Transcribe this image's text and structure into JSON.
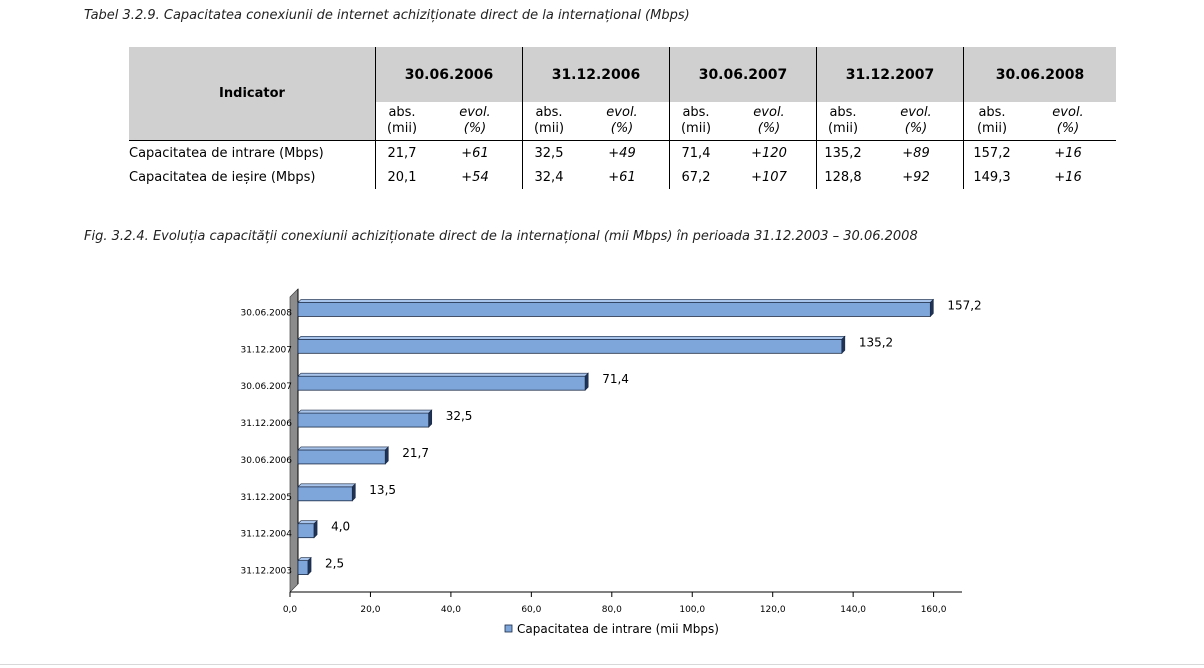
{
  "table_caption": "Tabel 3.2.9. Capacitatea conexiunii de internet achiziționate direct de la internațional (Mbps)",
  "table": {
    "indicator_header": "Indicator",
    "dates": [
      "30.06.2006",
      "31.12.2006",
      "30.06.2007",
      "31.12.2007",
      "30.06.2008"
    ],
    "abs_label": "abs.",
    "abs_unit": "(mii)",
    "evol_label": "evol.",
    "evol_unit": "(%)",
    "rows": [
      {
        "label": "Capacitatea de intrare (Mbps)",
        "cells": [
          [
            "21,7",
            "+61"
          ],
          [
            "32,5",
            "+49"
          ],
          [
            "71,4",
            "+120"
          ],
          [
            "135,2",
            "+89"
          ],
          [
            "157,2",
            "+16"
          ]
        ]
      },
      {
        "label": "Capacitatea de ieșire (Mbps)",
        "cells": [
          [
            "20,1",
            "+54"
          ],
          [
            "32,4",
            "+61"
          ],
          [
            "67,2",
            "+107"
          ],
          [
            "128,8",
            "+92"
          ],
          [
            "149,3",
            "+16"
          ]
        ]
      }
    ]
  },
  "figure_caption": "Fig. 3.2.4. Evoluția capacității conexiunii achiziționate direct de la internațional (mii Mbps) în perioada 31.12.2003 – 30.06.2008",
  "chart_data": {
    "type": "bar",
    "orientation": "horizontal",
    "categories": [
      "31.12.2003",
      "31.12.2004",
      "31.12.2005",
      "30.06.2006",
      "31.12.2006",
      "30.06.2007",
      "31.12.2007",
      "30.06.2008"
    ],
    "value_labels": [
      "2,5",
      "4,0",
      "13,5",
      "21,7",
      "32,5",
      "71,4",
      "135,2",
      "157,2"
    ],
    "series": [
      {
        "name": "Capacitatea de intrare (mii Mbps)",
        "values": [
          2.5,
          4.0,
          13.5,
          21.7,
          32.5,
          71.4,
          135.2,
          157.2
        ]
      }
    ],
    "xlim": [
      0,
      170
    ],
    "ticks": [
      0,
      20,
      40,
      60,
      80,
      100,
      120,
      140,
      160
    ],
    "tick_labels": [
      "0,0",
      "20,0",
      "40,0",
      "60,0",
      "80,0",
      "100,0",
      "120,0",
      "140,0",
      "160,0"
    ],
    "legend_position": "bottom",
    "grid": false,
    "bar_color": "#7ea6da"
  }
}
